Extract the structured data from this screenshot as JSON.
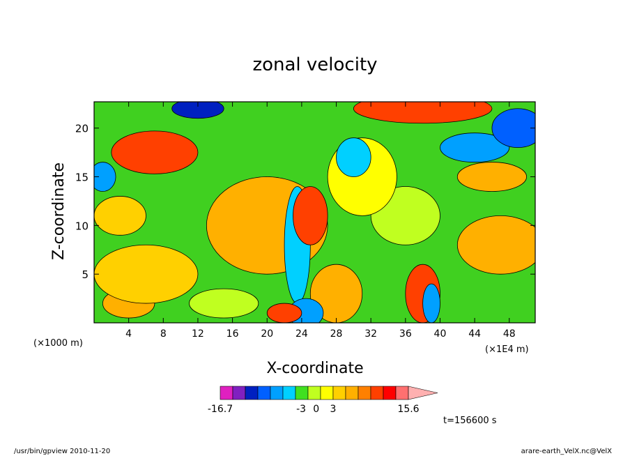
{
  "chart_data": {
    "type": "heatmap",
    "title": "zonal velocity",
    "xlabel": "X-coordinate",
    "ylabel": "Z-coordinate",
    "x_unit_left": "(×1000 m)",
    "x_unit_right": "(×1E4 m)",
    "xlim": [
      0,
      51
    ],
    "ylim": [
      0,
      22.7
    ],
    "xticks": [
      "4",
      "8",
      "12",
      "16",
      "20",
      "24",
      "28",
      "32",
      "36",
      "40",
      "44",
      "48"
    ],
    "yticks": [
      "5",
      "10",
      "15",
      "20"
    ],
    "colorbar": {
      "colors": [
        "#e020c0",
        "#8020c0",
        "#0020c0",
        "#0060ff",
        "#00a0ff",
        "#00d0ff",
        "#40e020",
        "#c0ff20",
        "#ffff00",
        "#ffd000",
        "#ffb000",
        "#ff8000",
        "#ff4000",
        "#ff0000",
        "#ff7070",
        "#ffb0b0"
      ],
      "labels": [
        "-16.7",
        "-3",
        "0",
        "3",
        "15.6"
      ]
    },
    "time_label": "t=156600 s",
    "fields": [
      {
        "cx": 7,
        "cy": 17.5,
        "rx": 5,
        "ry": 2.2,
        "v": 6
      },
      {
        "cx": 12,
        "cy": 22,
        "rx": 3,
        "ry": 1,
        "v": -9
      },
      {
        "cx": 1,
        "cy": 15,
        "rx": 1.5,
        "ry": 1.5,
        "v": -6
      },
      {
        "cx": 3,
        "cy": 11,
        "rx": 3,
        "ry": 2,
        "v": 1
      },
      {
        "cx": 20,
        "cy": 10,
        "rx": 7,
        "ry": 5,
        "v": 3
      },
      {
        "cx": 23.5,
        "cy": 8,
        "rx": 1.5,
        "ry": 6,
        "v": -5
      },
      {
        "cx": 25,
        "cy": 11,
        "rx": 2,
        "ry": 3,
        "v": 6
      },
      {
        "cx": 28,
        "cy": 3,
        "rx": 3,
        "ry": 3,
        "v": 3
      },
      {
        "cx": 24.5,
        "cy": 1,
        "rx": 2,
        "ry": 1.5,
        "v": -6
      },
      {
        "cx": 22,
        "cy": 1,
        "rx": 2,
        "ry": 1,
        "v": 5
      },
      {
        "cx": 38,
        "cy": 3,
        "rx": 2,
        "ry": 3,
        "v": 6
      },
      {
        "cx": 39,
        "cy": 2,
        "rx": 1,
        "ry": 2,
        "v": -6
      },
      {
        "cx": 36,
        "cy": 11,
        "rx": 4,
        "ry": 3,
        "v": -2
      },
      {
        "cx": 44,
        "cy": 18,
        "rx": 4,
        "ry": 1.5,
        "v": -6
      },
      {
        "cx": 46,
        "cy": 15,
        "rx": 4,
        "ry": 1.5,
        "v": 3
      },
      {
        "cx": 38,
        "cy": 22,
        "rx": 8,
        "ry": 1.5,
        "v": 5
      },
      {
        "cx": 47,
        "cy": 8,
        "rx": 5,
        "ry": 3,
        "v": 3
      },
      {
        "cx": 15,
        "cy": 2,
        "rx": 4,
        "ry": 1.5,
        "v": -2
      },
      {
        "cx": 4,
        "cy": 2,
        "rx": 3,
        "ry": 1.5,
        "v": 2
      },
      {
        "cx": 6,
        "cy": 5,
        "rx": 6,
        "ry": 3,
        "v": 1
      },
      {
        "cx": 31,
        "cy": 15,
        "rx": 4,
        "ry": 4,
        "v": 0
      },
      {
        "cx": 49,
        "cy": 20,
        "rx": 3,
        "ry": 2,
        "v": -8
      },
      {
        "cx": 30,
        "cy": 17,
        "rx": 2,
        "ry": 2,
        "v": -4
      }
    ]
  },
  "footer": {
    "left": "/usr/bin/gpview   2010-11-20",
    "right": "arare-earth_VelX.nc@VelX"
  }
}
